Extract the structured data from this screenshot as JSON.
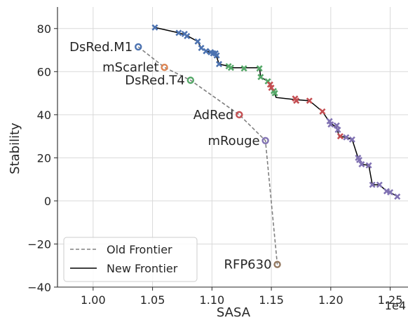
{
  "chart_data": {
    "type": "scatter",
    "xlabel": "SASA",
    "ylabel": "Stability",
    "x_offset_text": "1e4",
    "xlim": [
      0.97,
      1.265
    ],
    "ylim": [
      -40,
      90
    ],
    "xticks": [
      1.0,
      1.05,
      1.1,
      1.15,
      1.2,
      1.25
    ],
    "xtick_labels": [
      "1.00",
      "1.05",
      "1.10",
      "1.15",
      "1.20",
      "1.25"
    ],
    "yticks": [
      -40,
      -20,
      0,
      20,
      40,
      60,
      80
    ],
    "ytick_labels": [
      "−40",
      "−20",
      "0",
      "20",
      "40",
      "60",
      "80"
    ],
    "grid": true,
    "legend": {
      "position": "lower-left",
      "entries": [
        {
          "label": "Old Frontier",
          "style": "dashed",
          "color": "#808080"
        },
        {
          "label": "New Frontier",
          "style": "solid",
          "color": "#000000"
        }
      ]
    },
    "old_frontier": {
      "points": [
        {
          "name": "DsRed.M1",
          "x": 1.038,
          "y": 71.5,
          "color": "#4c72b0"
        },
        {
          "name": "mScarlet",
          "x": 1.06,
          "y": 62.0,
          "color": "#dd8452"
        },
        {
          "name": "DsRed.T4",
          "x": 1.082,
          "y": 56.0,
          "color": "#55a868"
        },
        {
          "name": "AdRed",
          "x": 1.123,
          "y": 40.0,
          "color": "#c44e52"
        },
        {
          "name": "mRouge",
          "x": 1.145,
          "y": 28.0,
          "color": "#8172b3"
        },
        {
          "name": "RFP630",
          "x": 1.155,
          "y": -29.5,
          "color": "#937860"
        }
      ]
    },
    "new_frontier": {
      "line": [
        [
          1.052,
          80.5
        ],
        [
          1.072,
          78.0
        ],
        [
          1.078,
          77.0
        ],
        [
          1.088,
          74.0
        ],
        [
          1.091,
          71.0
        ],
        [
          1.095,
          69.5
        ],
        [
          1.099,
          69.0
        ],
        [
          1.103,
          68.5
        ],
        [
          1.106,
          63.5
        ],
        [
          1.114,
          62.5
        ],
        [
          1.116,
          61.8
        ],
        [
          1.127,
          61.8
        ],
        [
          1.14,
          61.8
        ],
        [
          1.141,
          57.5
        ],
        [
          1.147,
          55.5
        ],
        [
          1.149,
          54.0
        ],
        [
          1.152,
          51.0
        ],
        [
          1.154,
          48.0
        ],
        [
          1.17,
          47.0
        ],
        [
          1.182,
          46.5
        ],
        [
          1.193,
          41.5
        ],
        [
          1.199,
          36.5
        ],
        [
          1.205,
          34.0
        ],
        [
          1.207,
          30.0
        ],
        [
          1.213,
          29.5
        ],
        [
          1.218,
          28.5
        ],
        [
          1.223,
          20.0
        ],
        [
          1.224,
          19.0
        ],
        [
          1.226,
          17.0
        ],
        [
          1.232,
          16.5
        ],
        [
          1.235,
          7.5
        ],
        [
          1.241,
          7.5
        ],
        [
          1.247,
          4.5
        ],
        [
          1.25,
          4.0
        ],
        [
          1.256,
          2.0
        ]
      ],
      "series": [
        {
          "color": "#4c72b0",
          "x": [
            1.052,
            1.072,
            1.077,
            1.079,
            1.088,
            1.091,
            1.095,
            1.099,
            1.101,
            1.103,
            1.104,
            1.106
          ],
          "y": [
            80.5,
            78.0,
            77.5,
            76.5,
            74.0,
            71.0,
            69.5,
            69.0,
            68.5,
            68.5,
            67.5,
            63.5
          ]
        },
        {
          "color": "#55a868",
          "x": [
            1.114,
            1.116,
            1.127,
            1.14,
            1.141,
            1.147,
            1.152,
            1.153
          ],
          "y": [
            62.5,
            61.8,
            61.5,
            61.5,
            57.5,
            55.5,
            51.0,
            50.0
          ]
        },
        {
          "color": "#c44e52",
          "x": [
            1.149,
            1.15,
            1.17,
            1.171,
            1.182,
            1.193,
            1.208
          ],
          "y": [
            54.0,
            52.5,
            47.5,
            46.5,
            46.5,
            41.5,
            30.0
          ]
        },
        {
          "color": "#8172b3",
          "x": [
            1.199,
            1.2,
            1.205,
            1.206,
            1.213,
            1.218,
            1.223,
            1.224,
            1.226,
            1.232,
            1.235,
            1.241,
            1.247,
            1.25,
            1.256
          ],
          "y": [
            37.0,
            35.5,
            35.0,
            33.0,
            29.5,
            28.5,
            20.0,
            19.0,
            17.0,
            16.5,
            7.5,
            7.5,
            4.5,
            4.0,
            2.0
          ]
        }
      ]
    }
  }
}
